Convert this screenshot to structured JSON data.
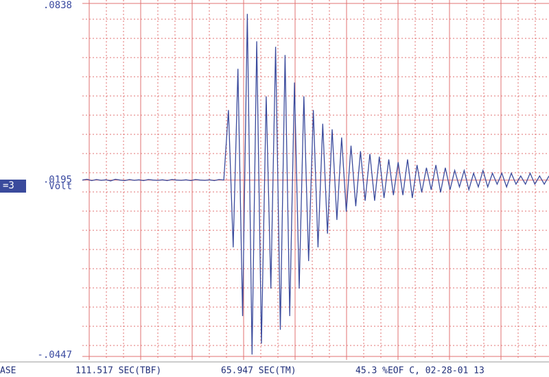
{
  "chart_data": {
    "type": "line",
    "channel_label": "=3",
    "y_unit": "Volt",
    "ylim": [
      -0.0447,
      0.0838
    ],
    "yticks": [
      {
        "value": -0.0447,
        "label": "-.0447"
      },
      {
        "value": 0.0195,
        "label": ".0195"
      },
      {
        "value": 0.0838,
        "label": ".0838"
      }
    ],
    "grid": true,
    "series": [
      {
        "color": "#3a4a9c",
        "values": [
          0.0195,
          0.0198,
          0.0193,
          0.0197,
          0.0194,
          0.0196,
          0.0192,
          0.0198,
          0.0195,
          0.0193,
          0.0197,
          0.0194,
          0.0196,
          0.0193,
          0.0197,
          0.0195,
          0.0194,
          0.0196,
          0.0193,
          0.0197,
          0.0195,
          0.0194,
          0.0196,
          0.0193,
          0.0197,
          0.0195,
          0.0194,
          0.0196,
          0.0193,
          0.0197,
          0.0195,
          0.045,
          -0.005,
          0.06,
          -0.03,
          0.08,
          -0.044,
          0.07,
          -0.04,
          0.05,
          -0.02,
          0.068,
          -0.035,
          0.065,
          -0.03,
          0.055,
          -0.02,
          0.05,
          -0.01,
          0.045,
          -0.005,
          0.04,
          0.0,
          0.038,
          0.005,
          0.035,
          0.008,
          0.032,
          0.01,
          0.03,
          0.012,
          0.029,
          0.012,
          0.028,
          0.013,
          0.027,
          0.014,
          0.026,
          0.014,
          0.027,
          0.013,
          0.025,
          0.015,
          0.024,
          0.016,
          0.025,
          0.015,
          0.024,
          0.016,
          0.023,
          0.017,
          0.023,
          0.016,
          0.022,
          0.017,
          0.023,
          0.017,
          0.022,
          0.018,
          0.022,
          0.017,
          0.022,
          0.018,
          0.021,
          0.018,
          0.022,
          0.018,
          0.021,
          0.018,
          0.021
        ]
      }
    ],
    "status": [
      "ASE",
      "111.517 SEC(TBF)",
      "65.947 SEC(TM)",
      "45.3 %EOF C, 02-28-01 13"
    ]
  }
}
